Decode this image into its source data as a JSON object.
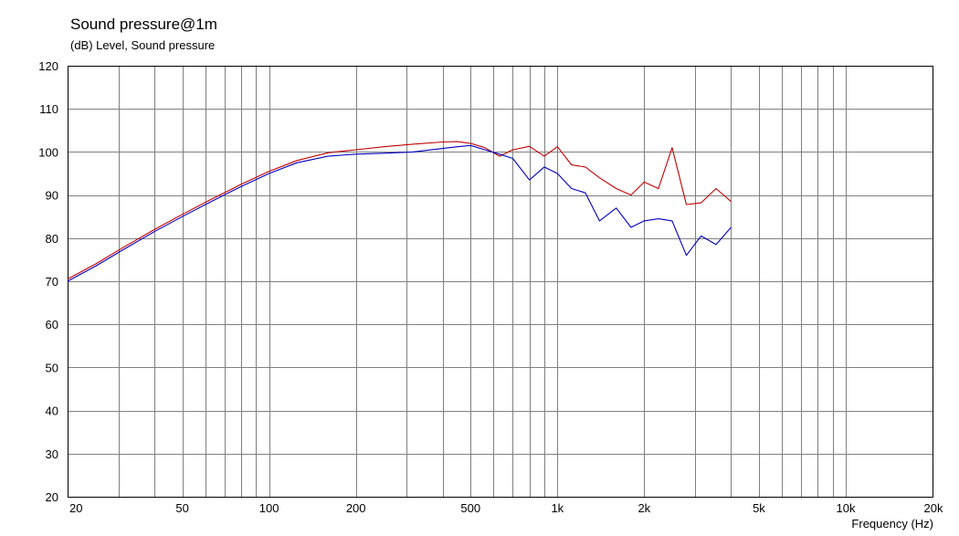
{
  "chart_data": {
    "type": "line",
    "title": "Sound pressure@1m",
    "ylabel": "(dB)  Level, Sound pressure",
    "xlabel": "Frequency  (Hz)",
    "x_scale": "log",
    "xlim": [
      20,
      20000
    ],
    "ylim": [
      20,
      120
    ],
    "grid": true,
    "y_ticks": [
      20,
      30,
      40,
      50,
      60,
      70,
      80,
      90,
      100,
      110,
      120
    ],
    "y_tick_labels": [
      "20",
      "30",
      "40",
      "50",
      "60",
      "70",
      "80",
      "90",
      "100",
      "110",
      "120"
    ],
    "x_ticks": [
      20,
      50,
      100,
      200,
      500,
      1000,
      2000,
      5000,
      10000,
      20000
    ],
    "x_tick_labels": [
      "20",
      "50",
      "100",
      "200",
      "500",
      "1k",
      "2k",
      "5k",
      "10k",
      "20k"
    ],
    "x_grid": [
      20,
      30,
      40,
      50,
      60,
      70,
      80,
      90,
      100,
      200,
      300,
      400,
      500,
      600,
      700,
      800,
      900,
      1000,
      2000,
      3000,
      4000,
      5000,
      6000,
      7000,
      8000,
      9000,
      10000,
      20000
    ],
    "series": [
      {
        "color": "#c00000",
        "points": [
          [
            20,
            70.5
          ],
          [
            25,
            74
          ],
          [
            31.5,
            78
          ],
          [
            40,
            82
          ],
          [
            50,
            85.5
          ],
          [
            63,
            89
          ],
          [
            80,
            92.5
          ],
          [
            100,
            95.5
          ],
          [
            125,
            98
          ],
          [
            160,
            99.8
          ],
          [
            200,
            100.5
          ],
          [
            250,
            101.2
          ],
          [
            315,
            101.8
          ],
          [
            400,
            102.3
          ],
          [
            450,
            102.4
          ],
          [
            500,
            102
          ],
          [
            560,
            101
          ],
          [
            630,
            99
          ],
          [
            700,
            100.5
          ],
          [
            800,
            101.3
          ],
          [
            900,
            99
          ],
          [
            1000,
            101.2
          ],
          [
            1120,
            97
          ],
          [
            1250,
            96.5
          ],
          [
            1400,
            94
          ],
          [
            1600,
            91.5
          ],
          [
            1800,
            90
          ],
          [
            2000,
            93
          ],
          [
            2240,
            91.5
          ],
          [
            2500,
            101
          ],
          [
            2800,
            87.8
          ],
          [
            3150,
            88.2
          ],
          [
            3550,
            91.5
          ],
          [
            4000,
            88.5
          ]
        ]
      },
      {
        "color": "#0000c0",
        "points": [
          [
            20,
            70
          ],
          [
            25,
            73.5
          ],
          [
            31.5,
            77.5
          ],
          [
            40,
            81.5
          ],
          [
            50,
            85
          ],
          [
            63,
            88.5
          ],
          [
            80,
            92
          ],
          [
            100,
            95
          ],
          [
            125,
            97.5
          ],
          [
            160,
            99
          ],
          [
            200,
            99.5
          ],
          [
            250,
            99.7
          ],
          [
            315,
            100
          ],
          [
            400,
            100.8
          ],
          [
            450,
            101.2
          ],
          [
            500,
            101.5
          ],
          [
            560,
            100.5
          ],
          [
            630,
            99.5
          ],
          [
            700,
            98.5
          ],
          [
            800,
            93.5
          ],
          [
            900,
            96.5
          ],
          [
            1000,
            95
          ],
          [
            1120,
            91.5
          ],
          [
            1250,
            90.5
          ],
          [
            1400,
            84
          ],
          [
            1600,
            87
          ],
          [
            1800,
            82.5
          ],
          [
            2000,
            84
          ],
          [
            2240,
            84.5
          ],
          [
            2500,
            84
          ],
          [
            2800,
            76
          ],
          [
            3150,
            80.5
          ],
          [
            3550,
            78.5
          ],
          [
            4000,
            82.5
          ]
        ]
      }
    ]
  }
}
